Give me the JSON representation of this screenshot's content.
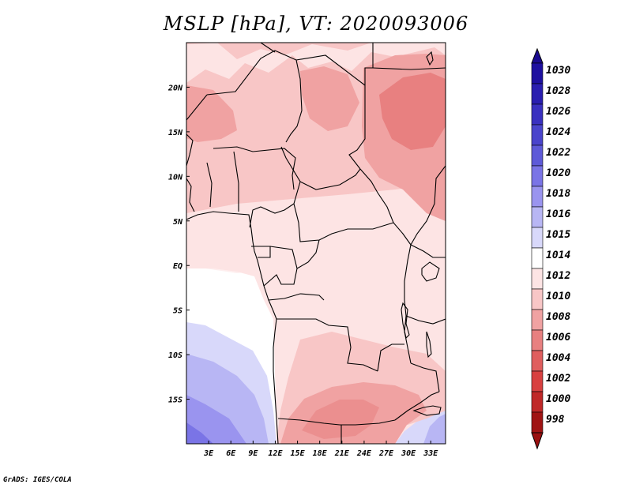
{
  "chart_data": {
    "type": "heatmap",
    "title": "MSLP [hPa], VT: 2020093006",
    "variable": "Mean sea level pressure",
    "units": "hPa",
    "valid_time": "2020093006",
    "region": "Central and Southern Africa",
    "lon_range": [
      0,
      35
    ],
    "lat_range": [
      -20,
      25
    ],
    "x_ticks": [
      {
        "value": 3,
        "label": "3E"
      },
      {
        "value": 6,
        "label": "6E"
      },
      {
        "value": 9,
        "label": "9E"
      },
      {
        "value": 12,
        "label": "12E"
      },
      {
        "value": 15,
        "label": "15E"
      },
      {
        "value": 18,
        "label": "18E"
      },
      {
        "value": 21,
        "label": "21E"
      },
      {
        "value": 24,
        "label": "24E"
      },
      {
        "value": 27,
        "label": "27E"
      },
      {
        "value": 30,
        "label": "30E"
      },
      {
        "value": 33,
        "label": "33E"
      }
    ],
    "y_ticks": [
      {
        "value": 20,
        "label": "20N"
      },
      {
        "value": 15,
        "label": "15N"
      },
      {
        "value": 10,
        "label": "10N"
      },
      {
        "value": 5,
        "label": "5N"
      },
      {
        "value": 0,
        "label": "EQ"
      },
      {
        "value": -5,
        "label": "5S"
      },
      {
        "value": -10,
        "label": "10S"
      },
      {
        "value": -15,
        "label": "15S"
      }
    ],
    "colorbar": {
      "levels": [
        {
          "label": "1030",
          "color": "#1e10a0"
        },
        {
          "label": "1028",
          "color": "#2a1eb0"
        },
        {
          "label": "1026",
          "color": "#3a30c0"
        },
        {
          "label": "1024",
          "color": "#4a44cc"
        },
        {
          "label": "1022",
          "color": "#5e5ad8"
        },
        {
          "label": "1020",
          "color": "#7a74e6"
        },
        {
          "label": "1018",
          "color": "#9a94ef"
        },
        {
          "label": "1016",
          "color": "#b8b6f4"
        },
        {
          "label": "1015",
          "color": "#d8d8fa"
        },
        {
          "label": "1014",
          "color": "#ffffff"
        },
        {
          "label": "1012",
          "color": "#fde4e4"
        },
        {
          "label": "1010",
          "color": "#f8c6c6"
        },
        {
          "label": "1008",
          "color": "#f0a2a2"
        },
        {
          "label": "1006",
          "color": "#e88080"
        },
        {
          "label": "1004",
          "color": "#e05e5e"
        },
        {
          "label": "1002",
          "color": "#d84040"
        },
        {
          "label": "1000",
          "color": "#c02828"
        },
        {
          "label": "998",
          "color": "#a01414"
        }
      ],
      "over_color": "#1a0a90",
      "under_color": "#9a1010"
    },
    "field_regions": [
      {
        "name": "north-background",
        "value": 1010
      },
      {
        "name": "sudan-low",
        "value": 1008
      },
      {
        "name": "chad-low",
        "value": 1010
      },
      {
        "name": "east-low-core",
        "value": 1006
      },
      {
        "name": "equatorial-belt",
        "value": 1012
      },
      {
        "name": "atlantic-ridge",
        "value": 1014
      },
      {
        "name": "atlantic-high",
        "value": 1016
      },
      {
        "name": "atlantic-high-core",
        "value": 1018
      },
      {
        "name": "angola-low",
        "value": 1010
      },
      {
        "name": "kalahari-low",
        "value": 1008
      },
      {
        "name": "mozambique-high",
        "value": 1016
      }
    ]
  },
  "footer": {
    "credit": "GrADS: IGES/COLA"
  }
}
